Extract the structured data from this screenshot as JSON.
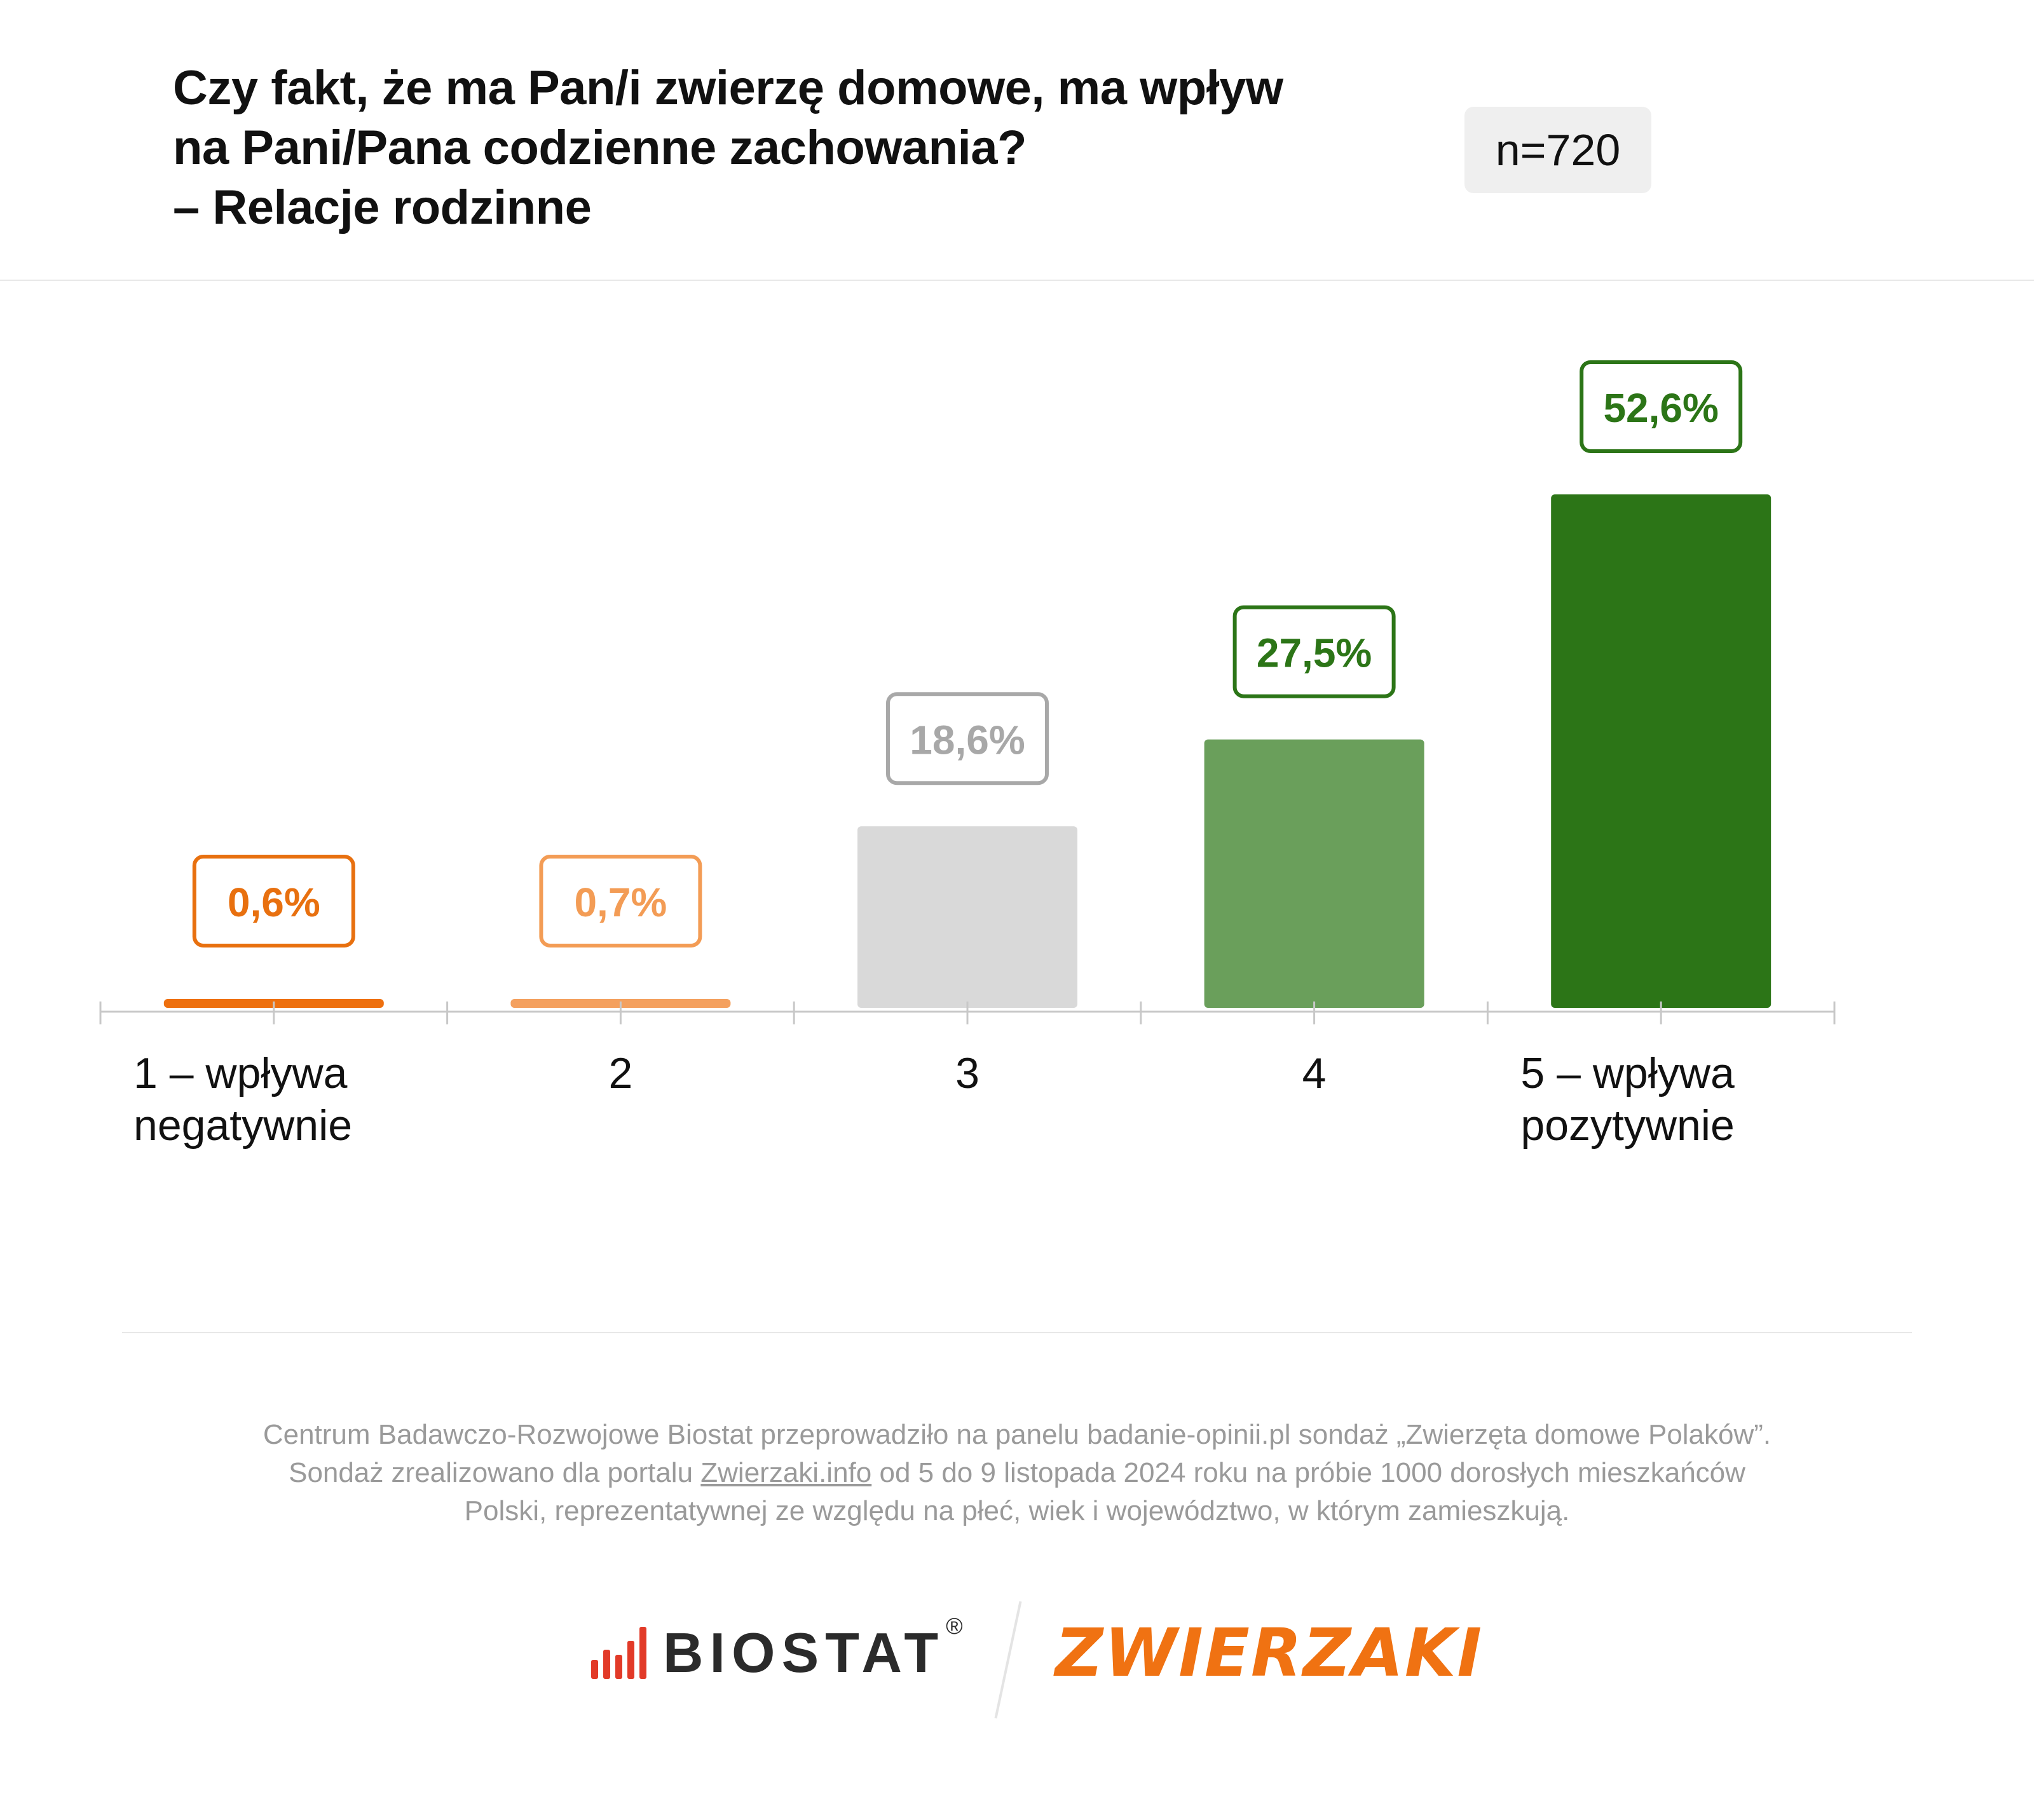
{
  "header": {
    "title_lines": [
      "Czy fakt, że ma Pan/i zwierzę domowe, ma wpływ",
      "na Pani/Pana codzienne zachowania?",
      "– Relacje rodzinne"
    ],
    "sample_size": "n=720"
  },
  "chart_data": {
    "type": "bar",
    "categories": [
      "1 – wpływa negatywnie",
      "2",
      "3",
      "4",
      "5 – wpływa pozytywnie"
    ],
    "category_label_lines": [
      [
        "1 – wpływa",
        "negatywnie"
      ],
      [
        "2"
      ],
      [
        "3"
      ],
      [
        "4"
      ],
      [
        "5 – wpływa",
        "pozytywnie"
      ]
    ],
    "values": [
      0.6,
      0.7,
      18.6,
      27.5,
      52.6
    ],
    "value_labels": [
      "0,6%",
      "0,7%",
      "18,6%",
      "27,5%",
      "52,6%"
    ],
    "bar_colors": [
      "#ee700f",
      "#f4a05e",
      "#d9d9d9",
      "#6a9f5b",
      "#2c7517"
    ],
    "label_colors": [
      "#e8700f",
      "#f39c55",
      "#a8a8a8",
      "#2c7517",
      "#2c7517"
    ],
    "ylim": [
      0,
      55
    ],
    "grid": false,
    "legend": "none"
  },
  "footer": {
    "line1": "Centrum Badawczo-Rozwojowe Biostat przeprowadziło na panelu badanie-opinii.pl sondaż „Zwierzęta domowe Polaków”.",
    "line2_before": "Sondaż zrealizowano dla portalu ",
    "line2_link": "Zwierzaki.info",
    "line2_after": " od 5 do 9 listopada 2024 roku na próbie 1000 dorosłych mieszkańców",
    "line3": "Polski, reprezentatywnej ze względu na płeć, wiek i województwo, w którym zamieszkują."
  },
  "logos": {
    "biostat": "BIOSTAT",
    "biostat_reg": "®",
    "zwierzaki": "ZWIERZAKI"
  }
}
